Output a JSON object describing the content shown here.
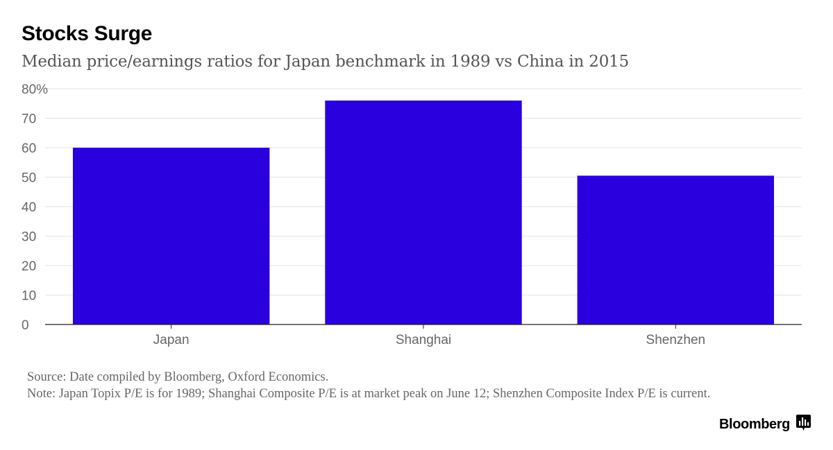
{
  "header": {
    "title": "Stocks Surge",
    "subtitle": "Median price/earnings ratios for Japan benchmark in 1989 vs China in 2015"
  },
  "chart_data": {
    "type": "bar",
    "title": "Stocks Surge",
    "subtitle": "Median price/earnings ratios for Japan benchmark in 1989 vs China in 2015",
    "categories": [
      "Japan",
      "Shanghai",
      "Shenzhen"
    ],
    "values": [
      60,
      76,
      50.5
    ],
    "ylim": [
      0,
      80
    ],
    "yticks": [
      0,
      10,
      20,
      30,
      40,
      50,
      60,
      70,
      80
    ],
    "ytick_labels": [
      "0",
      "10",
      "20",
      "30",
      "40",
      "50",
      "60",
      "70",
      "80%"
    ],
    "xlabel": "",
    "ylabel": "",
    "grid": true,
    "legend": "none",
    "bar_color": "#2a00de"
  },
  "footer": {
    "source": "Source: Date compiled by Bloomberg, Oxford Economics.",
    "note": "Note: Japan Topix P/E is for 1989; Shanghai Composite P/E is at market peak on June 12; Shenzhen Composite Index P/E is current.",
    "brand": "Bloomberg"
  },
  "colors": {
    "bar": "#2a00de",
    "grid": "#e3e3e3",
    "axis": "#222222",
    "tick_text": "#666666"
  },
  "icons": {
    "brand_icon": "bar-chart-speech-icon"
  }
}
